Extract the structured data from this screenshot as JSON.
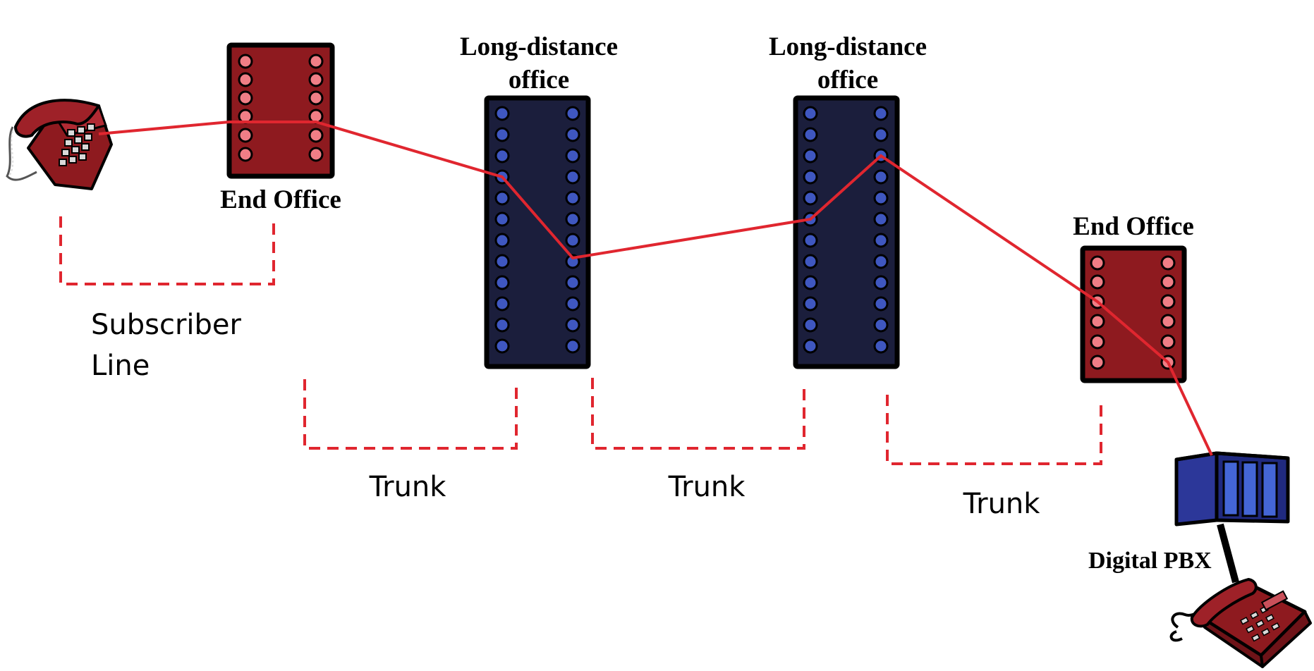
{
  "labels": {
    "end_office_left": "End Office",
    "long_distance_1_line1": "Long-distance",
    "long_distance_1_line2": "office",
    "long_distance_2_line1": "Long-distance",
    "long_distance_2_line2": "office",
    "end_office_right": "End Office",
    "subscriber_line_1": "Subscriber",
    "subscriber_line_2": "Line",
    "trunk_1": "Trunk",
    "trunk_2": "Trunk",
    "trunk_3": "Trunk",
    "digital_pbx": "Digital PBX"
  },
  "icons": {
    "phone_left": "telephone-icon",
    "pbx": "server-rack-icon",
    "phone_right": "desk-phone-icon"
  },
  "colors": {
    "route": "#e0262f",
    "end_office_fill": "#8e1a1f",
    "end_office_port": "#f07e86",
    "long_distance_fill": "#1b1e3c",
    "long_distance_port": "#3f57c0",
    "pbx_fill": "#2c3799"
  }
}
